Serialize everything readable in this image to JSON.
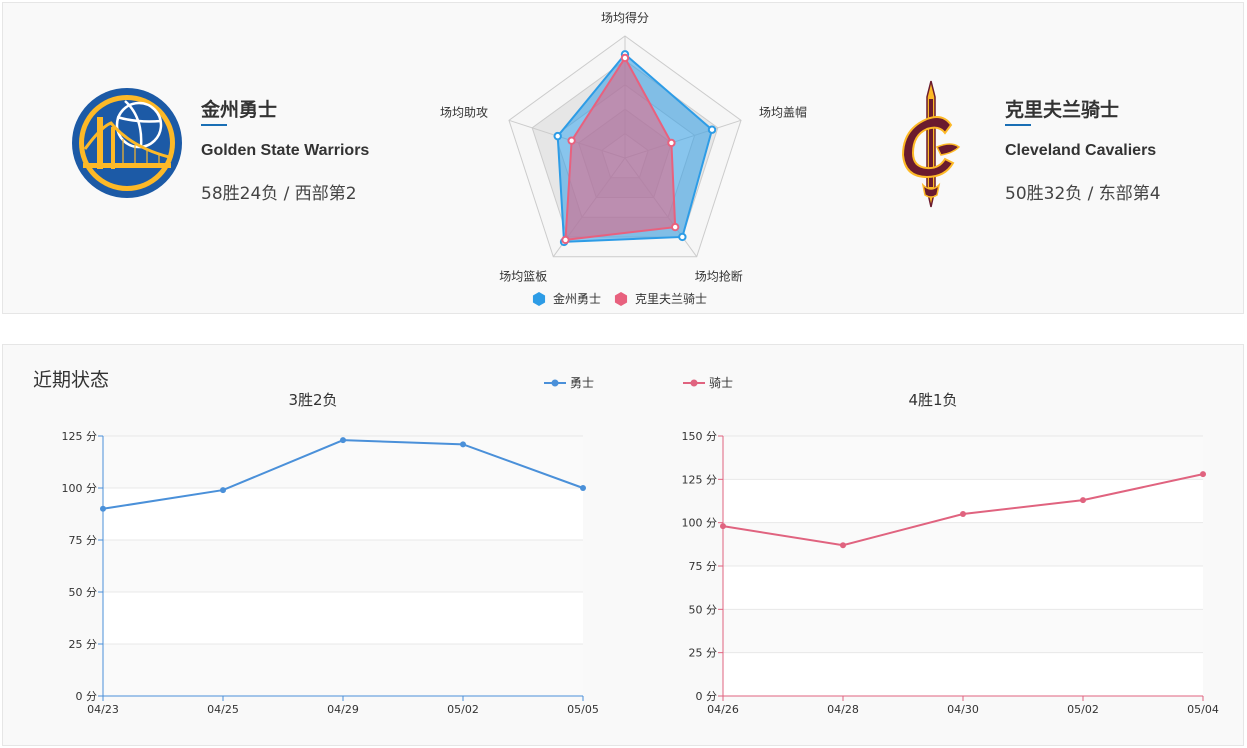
{
  "matchup": {
    "home": {
      "name_cn": "金州勇士",
      "name_en": "Golden State Warriors",
      "record": "58胜24负 / 西部第2",
      "logo": "warriors-logo",
      "color": "#2d9ce6"
    },
    "away": {
      "name_cn": "克里夫兰骑士",
      "name_en": "Cleveland Cavaliers",
      "record": "50胜32负 / 东部第4",
      "logo": "cavaliers-logo",
      "color": "#e8617e"
    }
  },
  "radar": {
    "indicators": [
      "场均得分",
      "场均盖帽",
      "场均抢断",
      "场均篮板",
      "场均助攻"
    ],
    "legend": [
      "金州勇士",
      "克里夫兰骑士"
    ],
    "series": [
      {
        "name": "金州勇士",
        "values": [
          0.85,
          0.75,
          0.8,
          0.85,
          0.58
        ]
      },
      {
        "name": "克里夫兰骑士",
        "values": [
          0.82,
          0.4,
          0.7,
          0.83,
          0.46
        ]
      }
    ]
  },
  "recent": {
    "title": "近期状态",
    "legend": [
      "勇士",
      "骑士"
    ],
    "colors": {
      "warriors": "#4a90d9",
      "cavaliers": "#e0637f"
    }
  },
  "chart_data": [
    {
      "type": "line",
      "title": "3胜2负",
      "series_name": "勇士",
      "x": [
        "04/23",
        "04/25",
        "04/29",
        "05/02",
        "05/05"
      ],
      "values": [
        90,
        99,
        123,
        121,
        100
      ],
      "ylim": [
        0,
        125
      ],
      "yticks": [
        "0 分",
        "25 分",
        "50 分",
        "75 分",
        "100 分",
        "125 分"
      ],
      "ytick_values": [
        0,
        25,
        50,
        75,
        100,
        125
      ],
      "color": "#4a90d9"
    },
    {
      "type": "line",
      "title": "4胜1负",
      "series_name": "骑士",
      "x": [
        "04/26",
        "04/28",
        "04/30",
        "05/02",
        "05/04"
      ],
      "values": [
        98,
        87,
        105,
        113,
        128
      ],
      "ylim": [
        0,
        150
      ],
      "yticks": [
        "0 分",
        "25 分",
        "50 分",
        "75 分",
        "100 分",
        "125 分",
        "150 分"
      ],
      "ytick_values": [
        0,
        25,
        50,
        75,
        100,
        125,
        150
      ],
      "color": "#e0637f"
    }
  ]
}
